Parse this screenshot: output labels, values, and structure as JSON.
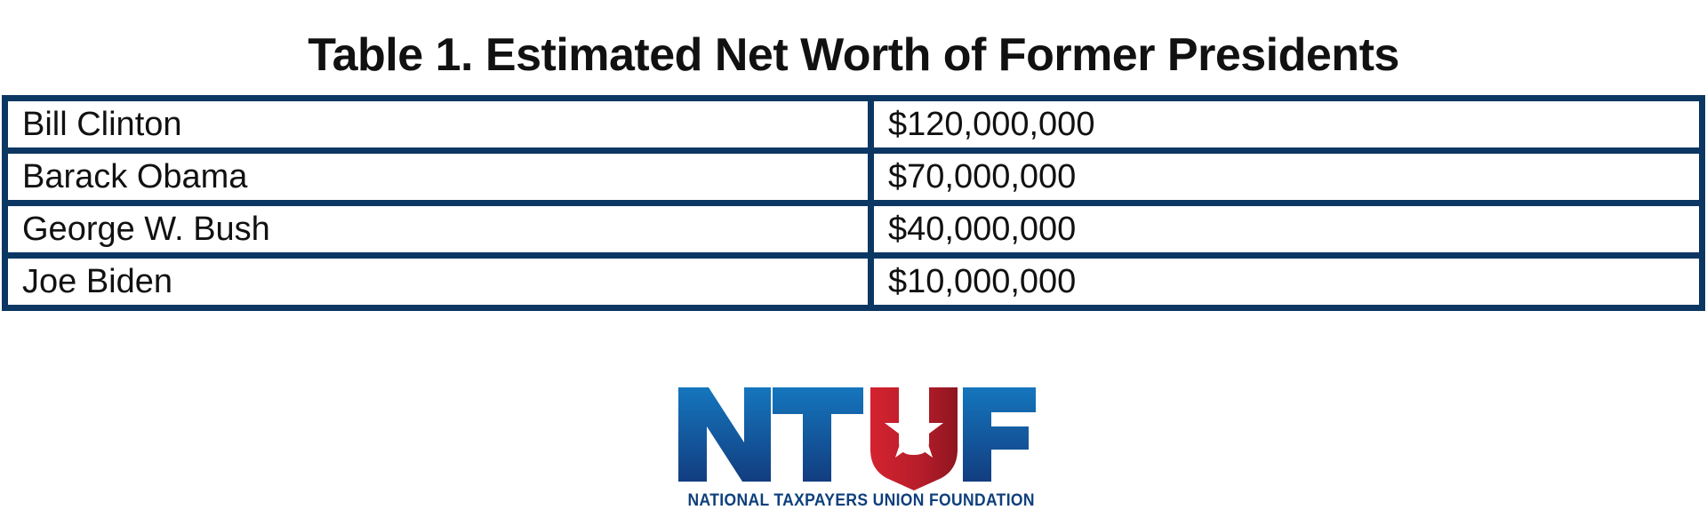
{
  "chart_data": {
    "type": "table",
    "title": "Table 1. Estimated Net Worth of Former Presidents",
    "rows": [
      {
        "name": "Bill Clinton",
        "value": "$120,000,000"
      },
      {
        "name": "Barack Obama",
        "value": "$70,000,000"
      },
      {
        "name": "George W. Bush",
        "value": "$40,000,000"
      },
      {
        "name": "Joe Biden",
        "value": "$10,000,000"
      }
    ],
    "border_color": "#0c3763"
  },
  "logo": {
    "text": "NTUF",
    "caption": "NATIONAL TAXPAYERS UNION FOUNDATION",
    "colors": {
      "blue_top": "#1576bd",
      "blue_bottom": "#123d80",
      "red": "#c4202e",
      "red_dark": "#8e1620"
    },
    "icon": "star-shield-icon"
  }
}
